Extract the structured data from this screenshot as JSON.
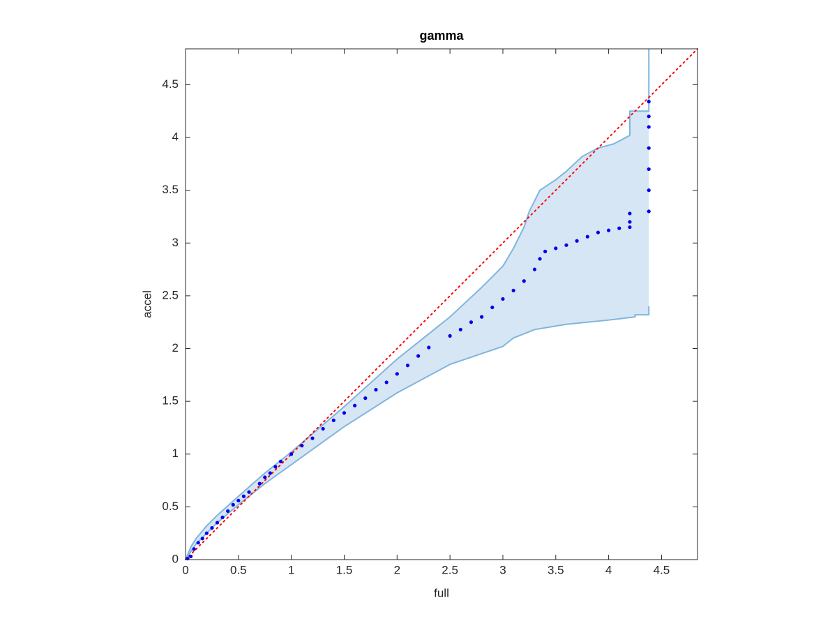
{
  "chart_data": {
    "type": "scatter",
    "title": "gamma",
    "x_label": "full",
    "y_label": "accel",
    "xlim": [
      0,
      4.84
    ],
    "ylim": [
      0,
      4.84
    ],
    "xticks": [
      0,
      0.5,
      1,
      1.5,
      2,
      2.5,
      3,
      3.5,
      4,
      4.5
    ],
    "yticks": [
      0,
      0.5,
      1,
      1.5,
      2,
      2.5,
      3,
      3.5,
      4,
      4.5
    ],
    "box": true,
    "band": {
      "fill_color": "#d6e6f4",
      "edge_color": "#7fb5de",
      "upper": {
        "x": [
          0,
          0.05,
          0.1,
          0.2,
          0.3,
          0.5,
          0.75,
          1,
          1.5,
          2,
          2.5,
          2.8,
          3,
          3.1,
          3.2,
          3.25,
          3.35,
          3.5,
          3.6,
          3.75,
          3.9,
          4.05,
          4.2,
          4.2,
          4.38,
          4.38
        ],
        "y": [
          0,
          0.12,
          0.2,
          0.32,
          0.42,
          0.6,
          0.82,
          1.02,
          1.45,
          1.9,
          2.3,
          2.58,
          2.78,
          2.95,
          3.15,
          3.3,
          3.5,
          3.6,
          3.68,
          3.82,
          3.9,
          3.94,
          4.02,
          4.25,
          4.25,
          4.84
        ]
      },
      "lower": {
        "x": [
          0,
          0.1,
          0.3,
          0.5,
          0.75,
          1,
          1.5,
          2,
          2.5,
          3,
          3.1,
          3.3,
          3.6,
          4,
          4.25,
          4.25,
          4.38,
          4.38
        ],
        "y": [
          0,
          0.15,
          0.35,
          0.52,
          0.72,
          0.9,
          1.26,
          1.58,
          1.85,
          2.02,
          2.1,
          2.18,
          2.23,
          2.27,
          2.3,
          2.32,
          2.32,
          2.4
        ]
      }
    },
    "reference_line": {
      "x": [
        0,
        4.84
      ],
      "y": [
        0,
        4.84
      ],
      "color": "#ff0000",
      "style": "dotted"
    },
    "points": {
      "color": "#0000ee",
      "x": [
        0.02,
        0.05,
        0.08,
        0.12,
        0.16,
        0.2,
        0.25,
        0.3,
        0.35,
        0.4,
        0.45,
        0.5,
        0.55,
        0.6,
        0.7,
        0.75,
        0.8,
        0.85,
        0.9,
        1,
        1.1,
        1.2,
        1.3,
        1.4,
        1.5,
        1.6,
        1.7,
        1.8,
        1.9,
        2,
        2.1,
        2.2,
        2.3,
        2.5,
        2.6,
        2.7,
        2.8,
        2.9,
        3,
        3.1,
        3.2,
        3.3,
        3.35,
        3.4,
        3.5,
        3.6,
        3.7,
        3.8,
        3.9,
        4,
        4.1,
        4.2,
        4.2,
        4.2,
        4.38,
        4.38,
        4.38,
        4.38,
        4.38,
        4.38,
        4.38
      ],
      "y": [
        0.01,
        0.03,
        0.1,
        0.16,
        0.2,
        0.25,
        0.3,
        0.35,
        0.4,
        0.46,
        0.52,
        0.56,
        0.6,
        0.64,
        0.72,
        0.78,
        0.82,
        0.88,
        0.93,
        1,
        1.08,
        1.15,
        1.24,
        1.32,
        1.39,
        1.46,
        1.53,
        1.61,
        1.68,
        1.76,
        1.84,
        1.93,
        2.01,
        2.12,
        2.18,
        2.25,
        2.3,
        2.39,
        2.47,
        2.55,
        2.64,
        2.75,
        2.85,
        2.92,
        2.95,
        2.98,
        3.02,
        3.06,
        3.1,
        3.12,
        3.14,
        3.2,
        3.28,
        3.15,
        3.3,
        3.5,
        3.7,
        3.9,
        4.1,
        4.2,
        4.34
      ]
    }
  }
}
